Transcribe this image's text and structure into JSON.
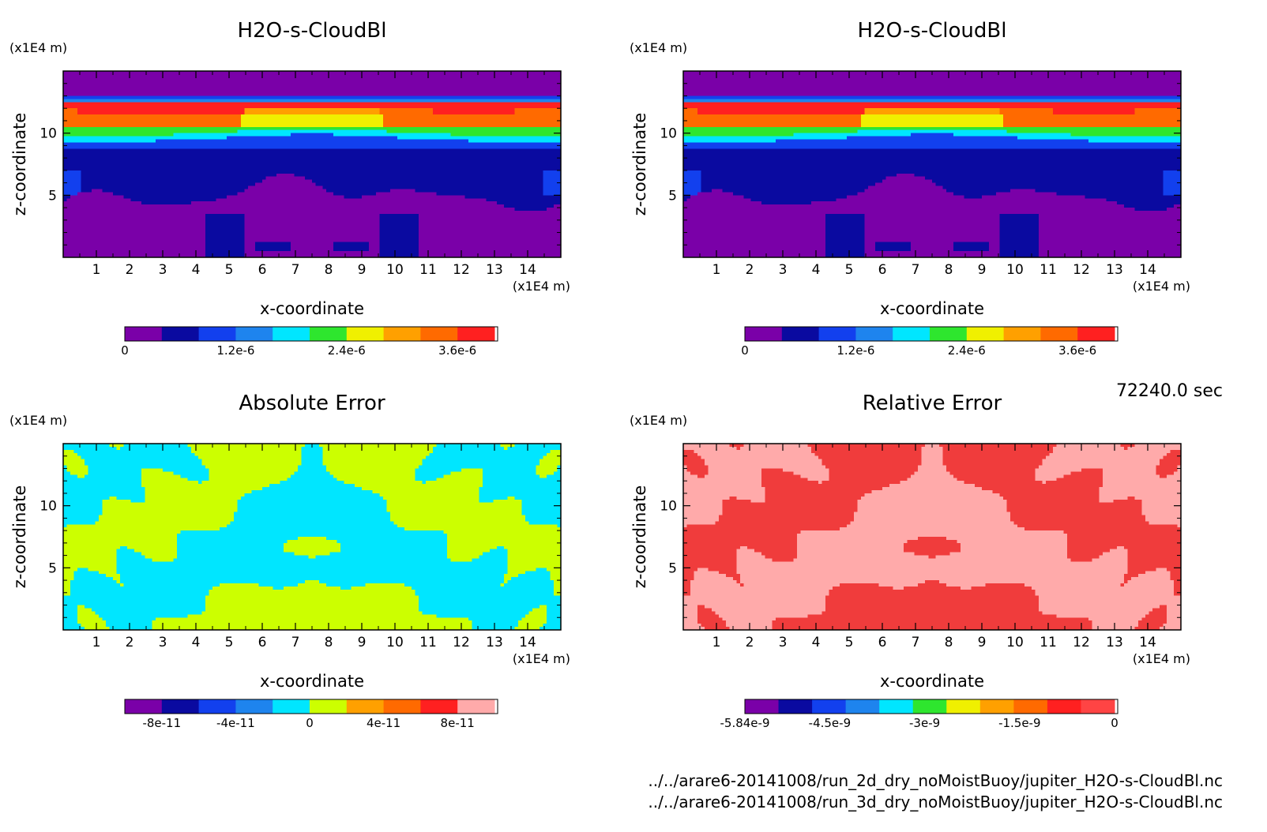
{
  "palettes": {
    "rainbow": [
      "#7a00a8",
      "#0a0aa0",
      "#1240ee",
      "#1e84ee",
      "#00e6ff",
      "#2ee62e",
      "#f0f000",
      "#ffa000",
      "#ff6a00",
      "#ff2020"
    ],
    "abs": [
      "#7a00a8",
      "#0a0aa0",
      "#1240ee",
      "#1e84ee",
      "#00e6ff",
      "#ccff00",
      "#ffa000",
      "#ff6a00",
      "#ff2020",
      "#ffaaaa"
    ],
    "rel": [
      "#7a00a8",
      "#0a0aa0",
      "#1240ee",
      "#1e84ee",
      "#00e6ff",
      "#2ee62e",
      "#f0f000",
      "#ffa000",
      "#ff6a00",
      "#ff2020",
      "#ff4444"
    ]
  },
  "footer": {
    "time": "72240.0 sec",
    "file1": "../../arare6-20141008/run_2d_dry_noMoistBuoy/jupiter_H2O-s-CloudBl.nc",
    "file2": "../../arare6-20141008/run_3d_dry_noMoistBuoy/jupiter_H2O-s-CloudBl.nc"
  },
  "chart_data": [
    {
      "id": "p1",
      "type": "heatmap",
      "field": "cloud",
      "title": "H2O-s-CloudBl",
      "xlabel": "x-coordinate",
      "ylabel": "z-coordinate",
      "x_unit": "(x1E4 m)",
      "y_unit": "(x1E4 m)",
      "xlim": [
        0,
        15
      ],
      "ylim": [
        0,
        15
      ],
      "xticks": [
        1,
        2,
        3,
        4,
        5,
        6,
        7,
        8,
        9,
        10,
        11,
        12,
        13,
        14
      ],
      "yticks": [
        5,
        10
      ],
      "palette": "rainbow",
      "colorbar": {
        "ticks": [
          "0",
          "1.2e-6",
          "2.4e-6",
          "3.6e-6"
        ],
        "tick_values": [
          0,
          1.2e-06,
          2.4e-06,
          3.6e-06
        ],
        "range": [
          0,
          4e-06
        ]
      }
    },
    {
      "id": "p2",
      "type": "heatmap",
      "field": "cloud",
      "title": "H2O-s-CloudBl",
      "xlabel": "x-coordinate",
      "ylabel": "z-coordinate",
      "x_unit": "(x1E4 m)",
      "y_unit": "(x1E4 m)",
      "xlim": [
        0,
        15
      ],
      "ylim": [
        0,
        15
      ],
      "xticks": [
        1,
        2,
        3,
        4,
        5,
        6,
        7,
        8,
        9,
        10,
        11,
        12,
        13,
        14
      ],
      "yticks": [
        5,
        10
      ],
      "palette": "rainbow",
      "colorbar": {
        "ticks": [
          "0",
          "1.2e-6",
          "2.4e-6",
          "3.6e-6"
        ],
        "tick_values": [
          0,
          1.2e-06,
          2.4e-06,
          3.6e-06
        ],
        "range": [
          0,
          4e-06
        ]
      }
    },
    {
      "id": "p3",
      "type": "heatmap",
      "field": "abs",
      "title": "Absolute Error",
      "xlabel": "x-coordinate",
      "ylabel": "z-coordinate",
      "x_unit": "(x1E4 m)",
      "y_unit": "(x1E4 m)",
      "xlim": [
        0,
        15
      ],
      "ylim": [
        0,
        15
      ],
      "xticks": [
        1,
        2,
        3,
        4,
        5,
        6,
        7,
        8,
        9,
        10,
        11,
        12,
        13,
        14
      ],
      "yticks": [
        5,
        10
      ],
      "palette": "abs",
      "colorbar": {
        "ticks": [
          "-8e-11",
          "-4e-11",
          "0",
          "4e-11",
          "8e-11"
        ],
        "tick_values": [
          -8e-11,
          -4e-11,
          0,
          4e-11,
          8e-11
        ],
        "range": [
          -1e-10,
          1e-10
        ]
      }
    },
    {
      "id": "p4",
      "type": "heatmap",
      "field": "rel",
      "title": "Relative Error",
      "xlabel": "x-coordinate",
      "ylabel": "z-coordinate",
      "x_unit": "(x1E4 m)",
      "y_unit": "(x1E4 m)",
      "xlim": [
        0,
        15
      ],
      "ylim": [
        0,
        15
      ],
      "xticks": [
        1,
        2,
        3,
        4,
        5,
        6,
        7,
        8,
        9,
        10,
        11,
        12,
        13,
        14
      ],
      "yticks": [
        5,
        10
      ],
      "palette": "rel",
      "colorbar": {
        "ticks": [
          "-5.84e-9",
          "-4.5e-9",
          "-3e-9",
          "-1.5e-9",
          "0"
        ],
        "tick_values": [
          -5.84e-09,
          -4.5e-09,
          -3e-09,
          -1.5e-09,
          0
        ],
        "range": [
          -5.84e-09,
          0
        ]
      }
    }
  ]
}
